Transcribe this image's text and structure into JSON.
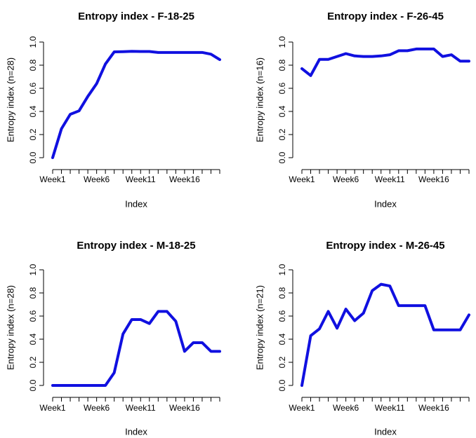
{
  "style": {
    "line_color": "#1010E0"
  },
  "chart_data": [
    {
      "type": "line",
      "title": "Entropy index -  F-18-25",
      "xlabel": "Index",
      "ylabel": "Entropy index (n=28)",
      "ylim": [
        0,
        1
      ],
      "yticks": [
        "0.0",
        "0.2",
        "0.4",
        "0.6",
        "0.8",
        "1.0"
      ],
      "xtick_labels": [
        "Week1",
        "Week6",
        "Week11",
        "Week16"
      ],
      "values": [
        0.0,
        0.25,
        0.375,
        0.405,
        0.53,
        0.64,
        0.81,
        0.915,
        0.917,
        0.92,
        0.918,
        0.918,
        0.91,
        0.91,
        0.91,
        0.91,
        0.91,
        0.91,
        0.895,
        0.848
      ]
    },
    {
      "type": "line",
      "title": "Entropy index -  F-26-45",
      "xlabel": "Index",
      "ylabel": "Entropy index (n=16)",
      "ylim": [
        0,
        1
      ],
      "yticks": [
        "0.0",
        "0.2",
        "0.4",
        "0.6",
        "0.8",
        "1.0"
      ],
      "xtick_labels": [
        "Week1",
        "Week6",
        "Week11",
        "Week16"
      ],
      "values": [
        0.77,
        0.71,
        0.85,
        0.85,
        0.875,
        0.9,
        0.88,
        0.875,
        0.875,
        0.88,
        0.89,
        0.925,
        0.925,
        0.94,
        0.94,
        0.94,
        0.875,
        0.89,
        0.835,
        0.835
      ]
    },
    {
      "type": "line",
      "title": "Entropy index -  M-18-25",
      "xlabel": "Index",
      "ylabel": "Entropy index (n=28)",
      "ylim": [
        0,
        1
      ],
      "yticks": [
        "0.0",
        "0.2",
        "0.4",
        "0.6",
        "0.8",
        "1.0"
      ],
      "xtick_labels": [
        "Week1",
        "Week6",
        "Week11",
        "Week16"
      ],
      "values": [
        0,
        0,
        0,
        0,
        0,
        0,
        0,
        0.11,
        0.445,
        0.57,
        0.57,
        0.535,
        0.64,
        0.64,
        0.555,
        0.295,
        0.37,
        0.37,
        0.295,
        0.295
      ]
    },
    {
      "type": "line",
      "title": "Entropy index -  M-26-45",
      "xlabel": "Index",
      "ylabel": "Entropy index (n=21)",
      "ylim": [
        0,
        1
      ],
      "yticks": [
        "0.0",
        "0.2",
        "0.4",
        "0.6",
        "0.8",
        "1.0"
      ],
      "xtick_labels": [
        "Week1",
        "Week6",
        "Week11",
        "Week16"
      ],
      "values": [
        0.0,
        0.43,
        0.49,
        0.64,
        0.495,
        0.66,
        0.56,
        0.625,
        0.82,
        0.875,
        0.86,
        0.69,
        0.69,
        0.69,
        0.69,
        0.48,
        0.48,
        0.48,
        0.48,
        0.61
      ]
    }
  ]
}
